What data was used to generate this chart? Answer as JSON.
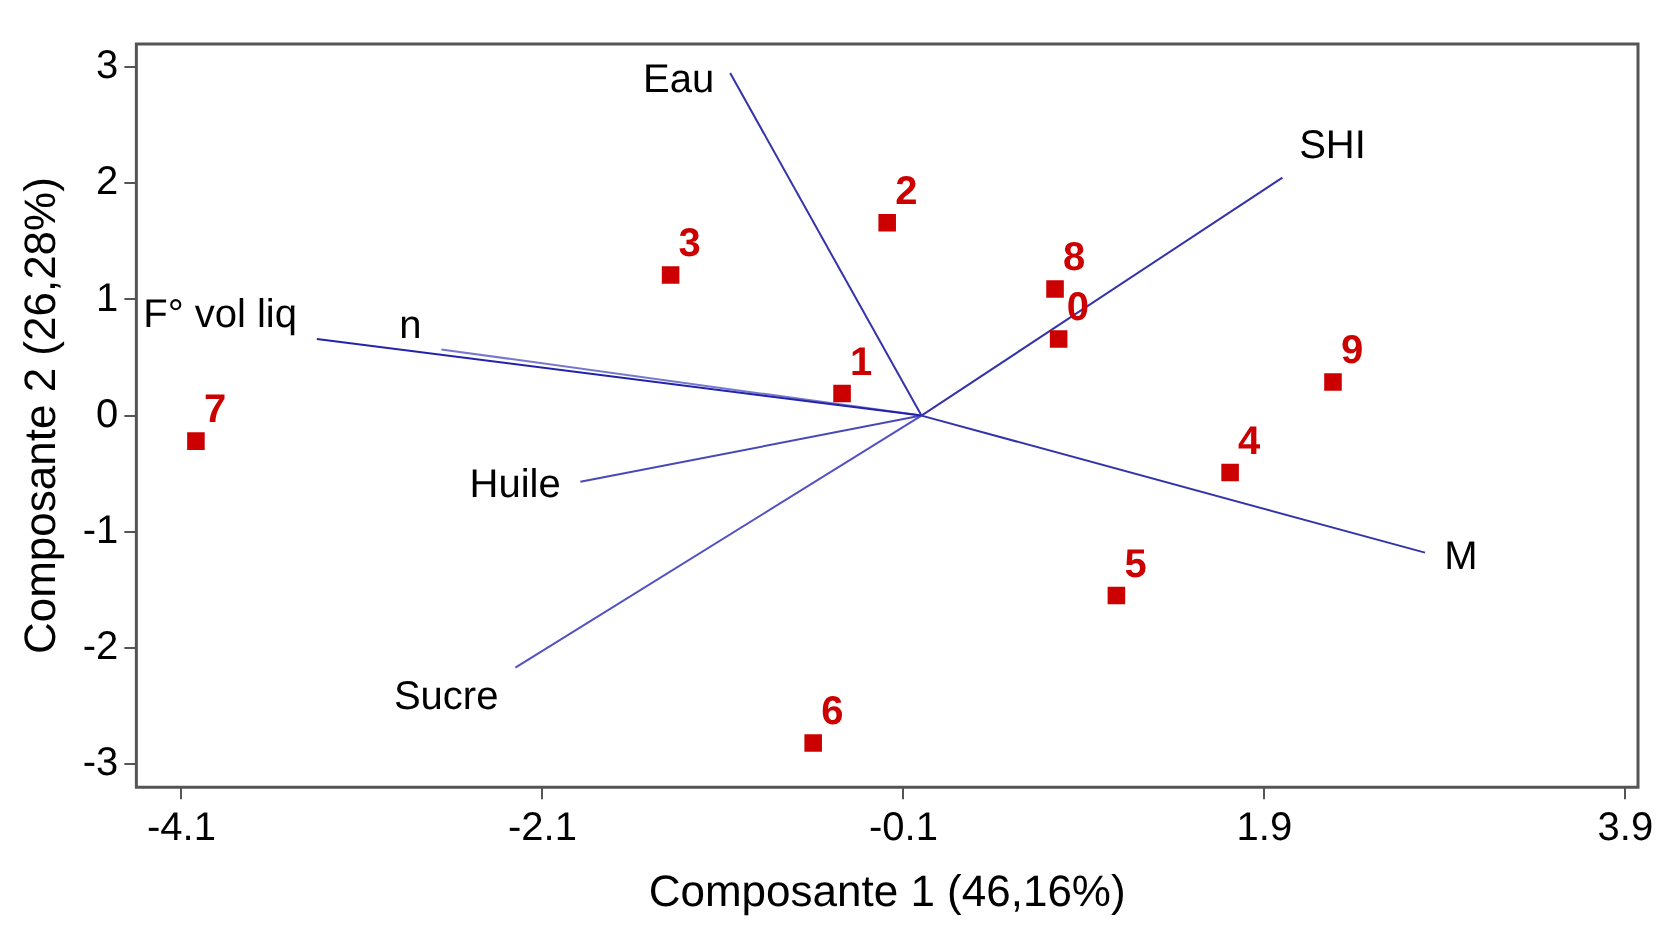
{
  "chart_data": {
    "type": "scatter",
    "xlabel": "Composante 1 (46,16%)",
    "ylabel": "Composante 2 (26,28%)",
    "xlim": [
      -4.35,
      3.97
    ],
    "ylim": [
      -3.2,
      3.2
    ],
    "xticks": [
      -4.1,
      -2.1,
      -0.1,
      1.9,
      3.9
    ],
    "yticks": [
      -3,
      -2,
      -1,
      0,
      1,
      2,
      3
    ],
    "grid": false,
    "legend": false,
    "line_style": "solid",
    "annotations": [
      {
        "text": "0",
        "x": 0.76,
        "y": 0.66
      },
      {
        "text": "1",
        "x": -0.44,
        "y": 0.19
      },
      {
        "text": "2",
        "x": -0.19,
        "y": 1.66
      },
      {
        "text": "3",
        "x": -1.39,
        "y": 1.21
      },
      {
        "text": "4",
        "x": 1.71,
        "y": -0.49
      },
      {
        "text": "5",
        "x": 1.08,
        "y": -1.55
      },
      {
        "text": "6",
        "x": -0.6,
        "y": -2.82
      },
      {
        "text": "7",
        "x": -4.02,
        "y": -0.22
      },
      {
        "text": "8",
        "x": 0.74,
        "y": 1.09
      },
      {
        "text": "9",
        "x": 2.28,
        "y": 0.29
      }
    ],
    "series": [
      {
        "color": "#cc0000",
        "marker": "square",
        "x": [
          0.76,
          -0.44,
          -0.19,
          -1.39,
          1.71,
          1.08,
          -0.6,
          -4.02,
          0.74,
          2.28
        ],
        "values": [
          0.66,
          0.19,
          1.66,
          1.21,
          -0.49,
          -1.55,
          -2.82,
          -0.22,
          1.09,
          0.29
        ]
      },
      {
        "type": "line",
        "marker": "none",
        "name": "Eau",
        "color": "#3333aa",
        "x": [
          0,
          -1.06
        ],
        "values": [
          0,
          2.95
        ]
      },
      {
        "type": "line",
        "marker": "none",
        "name": "F° vol liq",
        "color": "#2222aa",
        "x": [
          0,
          -3.35
        ],
        "values": [
          0,
          0.66
        ]
      },
      {
        "type": "line",
        "marker": "none",
        "name": "n",
        "color": "#7777cc",
        "x": [
          0,
          -2.66
        ],
        "values": [
          0,
          0.57
        ]
      },
      {
        "type": "line",
        "marker": "none",
        "name": "Huile",
        "color": "#4848b8",
        "x": [
          0,
          -1.89
        ],
        "values": [
          0,
          -0.57
        ]
      },
      {
        "type": "line",
        "marker": "none",
        "name": "Sucre",
        "color": "#5252c4",
        "x": [
          0,
          -2.25
        ],
        "values": [
          0,
          -2.17
        ]
      },
      {
        "type": "line",
        "marker": "none",
        "name": "SHI",
        "color": "#3333aa",
        "x": [
          0,
          2.0
        ],
        "values": [
          0,
          2.05
        ]
      },
      {
        "type": "line",
        "marker": "none",
        "name": "M",
        "color": "#3333aa",
        "x": [
          0,
          2.79
        ],
        "values": [
          0,
          -1.18
        ]
      }
    ]
  }
}
